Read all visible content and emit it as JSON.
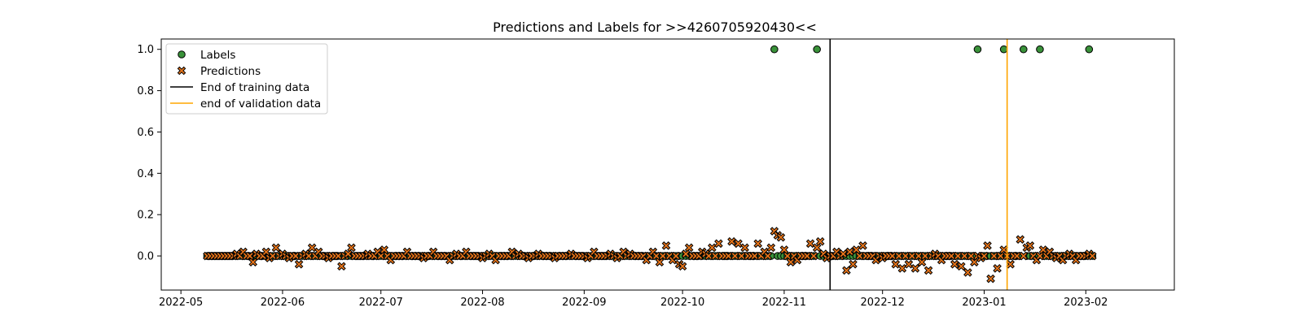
{
  "chart_data": {
    "type": "scatter",
    "title": "Predictions and Labels for >>4260705920430<<",
    "xlabel": "",
    "ylabel": "",
    "x_type": "date",
    "xlim": [
      "2022-04-25",
      "2023-02-28"
    ],
    "ylim": [
      -0.165,
      1.05
    ],
    "grid": false,
    "legend_position": "top-left",
    "x_ticks": [
      "2022-05",
      "2022-06",
      "2022-07",
      "2022-08",
      "2022-09",
      "2022-10",
      "2022-11",
      "2022-12",
      "2023-01",
      "2023-02"
    ],
    "y_ticks": [
      "0.0",
      "0.2",
      "0.4",
      "0.6",
      "0.8",
      "1.0"
    ],
    "series": [
      {
        "name": "Labels",
        "marker": "circle",
        "color": "#3a923a",
        "edge_color": "#000000",
        "default_value": 0.0,
        "x_range": [
          "2022-05-09",
          "2023-02-03"
        ],
        "positive_dates": [
          "2022-10-29",
          "2022-11-11",
          "2022-12-30",
          "2023-01-07",
          "2023-01-13",
          "2023-01-18",
          "2023-02-02"
        ]
      },
      {
        "name": "Predictions",
        "marker": "x",
        "color": "#e8751a",
        "edge_color": "#000000",
        "x_range": [
          "2022-05-09",
          "2023-02-03"
        ],
        "points": [
          [
            "2022-05-18",
            0.01
          ],
          [
            "2022-05-20",
            0.02
          ],
          [
            "2022-05-22",
            0.0
          ],
          [
            "2022-05-23",
            -0.03
          ],
          [
            "2022-05-24",
            0.01
          ],
          [
            "2022-05-26",
            0.0
          ],
          [
            "2022-05-27",
            0.02
          ],
          [
            "2022-05-28",
            -0.01
          ],
          [
            "2022-05-30",
            0.04
          ],
          [
            "2022-06-01",
            0.01
          ],
          [
            "2022-06-03",
            -0.01
          ],
          [
            "2022-06-05",
            0.0
          ],
          [
            "2022-06-06",
            -0.04
          ],
          [
            "2022-06-08",
            0.01
          ],
          [
            "2022-06-10",
            0.04
          ],
          [
            "2022-06-12",
            0.02
          ],
          [
            "2022-06-15",
            -0.01
          ],
          [
            "2022-06-17",
            0.0
          ],
          [
            "2022-06-19",
            -0.05
          ],
          [
            "2022-06-21",
            0.01
          ],
          [
            "2022-06-22",
            0.04
          ],
          [
            "2022-06-25",
            0.0
          ],
          [
            "2022-06-27",
            0.01
          ],
          [
            "2022-06-30",
            0.02
          ],
          [
            "2022-07-02",
            0.03
          ],
          [
            "2022-07-04",
            -0.02
          ],
          [
            "2022-07-06",
            0.0
          ],
          [
            "2022-07-09",
            0.02
          ],
          [
            "2022-07-12",
            0.0
          ],
          [
            "2022-07-14",
            -0.01
          ],
          [
            "2022-07-17",
            0.02
          ],
          [
            "2022-07-20",
            0.0
          ],
          [
            "2022-07-22",
            -0.02
          ],
          [
            "2022-07-24",
            0.01
          ],
          [
            "2022-07-27",
            0.02
          ],
          [
            "2022-07-30",
            0.0
          ],
          [
            "2022-08-01",
            -0.01
          ],
          [
            "2022-08-03",
            0.01
          ],
          [
            "2022-08-05",
            -0.02
          ],
          [
            "2022-08-07",
            0.0
          ],
          [
            "2022-08-10",
            0.02
          ],
          [
            "2022-08-12",
            0.01
          ],
          [
            "2022-08-15",
            -0.01
          ],
          [
            "2022-08-18",
            0.01
          ],
          [
            "2022-08-20",
            0.0
          ],
          [
            "2022-08-23",
            -0.01
          ],
          [
            "2022-08-25",
            0.0
          ],
          [
            "2022-08-28",
            0.01
          ],
          [
            "2022-08-31",
            0.0
          ],
          [
            "2022-09-02",
            -0.01
          ],
          [
            "2022-09-04",
            0.02
          ],
          [
            "2022-09-06",
            0.0
          ],
          [
            "2022-09-09",
            0.01
          ],
          [
            "2022-09-11",
            -0.01
          ],
          [
            "2022-09-13",
            0.02
          ],
          [
            "2022-09-15",
            0.01
          ],
          [
            "2022-09-18",
            0.0
          ],
          [
            "2022-09-20",
            -0.02
          ],
          [
            "2022-09-22",
            0.02
          ],
          [
            "2022-09-24",
            -0.03
          ],
          [
            "2022-09-26",
            0.05
          ],
          [
            "2022-09-28",
            -0.02
          ],
          [
            "2022-09-30",
            -0.04
          ],
          [
            "2022-10-01",
            -0.05
          ],
          [
            "2022-10-02",
            0.01
          ],
          [
            "2022-10-03",
            0.04
          ],
          [
            "2022-10-05",
            0.0
          ],
          [
            "2022-10-07",
            0.02
          ],
          [
            "2022-10-08",
            0.01
          ],
          [
            "2022-10-10",
            0.04
          ],
          [
            "2022-10-12",
            0.06
          ],
          [
            "2022-10-14",
            0.0
          ],
          [
            "2022-10-16",
            0.07
          ],
          [
            "2022-10-18",
            0.06
          ],
          [
            "2022-10-20",
            0.04
          ],
          [
            "2022-10-22",
            0.0
          ],
          [
            "2022-10-24",
            0.06
          ],
          [
            "2022-10-26",
            0.02
          ],
          [
            "2022-10-28",
            0.04
          ],
          [
            "2022-10-29",
            0.12
          ],
          [
            "2022-10-30",
            0.1
          ],
          [
            "2022-10-31",
            0.09
          ],
          [
            "2022-11-01",
            0.03
          ],
          [
            "2022-11-03",
            -0.03
          ],
          [
            "2022-11-05",
            -0.02
          ],
          [
            "2022-11-07",
            0.0
          ],
          [
            "2022-11-09",
            0.06
          ],
          [
            "2022-11-11",
            0.04
          ],
          [
            "2022-11-12",
            0.07
          ],
          [
            "2022-11-13",
            0.01
          ],
          [
            "2022-11-14",
            -0.01
          ],
          [
            "2022-11-17",
            0.02
          ],
          [
            "2022-11-19",
            0.01
          ],
          [
            "2022-11-20",
            -0.07
          ],
          [
            "2022-11-21",
            0.02
          ],
          [
            "2022-11-22",
            -0.04
          ],
          [
            "2022-11-23",
            0.03
          ],
          [
            "2022-11-25",
            0.05
          ],
          [
            "2022-11-27",
            0.0
          ],
          [
            "2022-11-29",
            -0.02
          ],
          [
            "2022-12-01",
            -0.01
          ],
          [
            "2022-12-03",
            0.0
          ],
          [
            "2022-12-05",
            -0.04
          ],
          [
            "2022-12-07",
            -0.06
          ],
          [
            "2022-12-09",
            -0.04
          ],
          [
            "2022-12-11",
            -0.06
          ],
          [
            "2022-12-13",
            -0.03
          ],
          [
            "2022-12-15",
            -0.07
          ],
          [
            "2022-12-17",
            0.01
          ],
          [
            "2022-12-19",
            -0.02
          ],
          [
            "2022-12-21",
            0.0
          ],
          [
            "2022-12-23",
            -0.04
          ],
          [
            "2022-12-25",
            -0.05
          ],
          [
            "2022-12-27",
            -0.08
          ],
          [
            "2022-12-29",
            -0.03
          ],
          [
            "2022-12-31",
            -0.01
          ],
          [
            "2023-01-02",
            0.05
          ],
          [
            "2023-01-03",
            -0.11
          ],
          [
            "2023-01-05",
            -0.06
          ],
          [
            "2023-01-07",
            0.03
          ],
          [
            "2023-01-09",
            -0.04
          ],
          [
            "2023-01-10",
            0.0
          ],
          [
            "2023-01-12",
            0.08
          ],
          [
            "2023-01-14",
            0.04
          ],
          [
            "2023-01-15",
            0.05
          ],
          [
            "2023-01-17",
            -0.02
          ],
          [
            "2023-01-19",
            0.03
          ],
          [
            "2023-01-21",
            0.02
          ],
          [
            "2023-01-23",
            -0.01
          ],
          [
            "2023-01-25",
            -0.02
          ],
          [
            "2023-01-27",
            0.01
          ],
          [
            "2023-01-29",
            -0.02
          ],
          [
            "2023-01-31",
            0.0
          ],
          [
            "2023-02-02",
            0.01
          ]
        ]
      }
    ],
    "vlines": [
      {
        "name": "End of training data",
        "x": "2022-11-15",
        "color": "#000000"
      },
      {
        "name": "end of validation data",
        "x": "2023-01-08",
        "color": "#ffa500"
      }
    ]
  }
}
